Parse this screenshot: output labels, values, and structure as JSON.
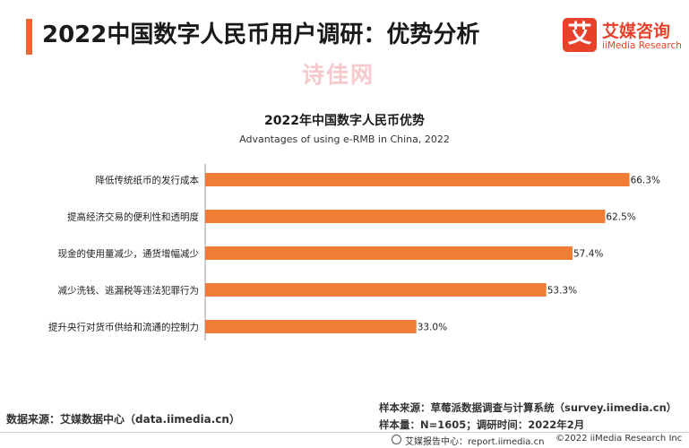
{
  "colors": {
    "accent": "#f0652f",
    "bar": "#ef7d36",
    "logo_red": "#e8412b"
  },
  "header": {
    "title": "2022中国数字人民币用户调研：优势分析"
  },
  "logo": {
    "mark": "艾",
    "name_cn": "艾媒咨询",
    "name_en": "iiMedia Research"
  },
  "watermark": "诗佳网",
  "chart_data": {
    "type": "bar",
    "orientation": "horizontal",
    "title": "2022年中国数字人民币优势",
    "subtitle": "Advantages of using e-RMB in China, 2022",
    "categories": [
      "降低传统纸币的发行成本",
      "提高经济交易的便利性和透明度",
      "现金的使用量减少，通货增幅减少",
      "减少洗钱、逃漏税等违法犯罪行为",
      "提升央行对货币供给和流通的控制力"
    ],
    "values": [
      66.3,
      62.5,
      57.4,
      53.3,
      33.0
    ],
    "value_labels": [
      "66.3%",
      "62.5%",
      "57.4%",
      "53.3%",
      "33.0%"
    ],
    "xlim": [
      0,
      70
    ],
    "grid": false,
    "legend": "none"
  },
  "footer": {
    "source_left": "数据来源：艾媒数据中心（data.iimedia.cn）",
    "source_right_1": "样本来源：草莓派数据调查与计算系统（survey.iimedia.cn）",
    "source_right_2": "样本量：N=1605；调研时间：2022年2月",
    "report_site": "艾媒报告中心：report.iimedia.cn",
    "copyright": "©2022 iiMedia Research Inc"
  }
}
